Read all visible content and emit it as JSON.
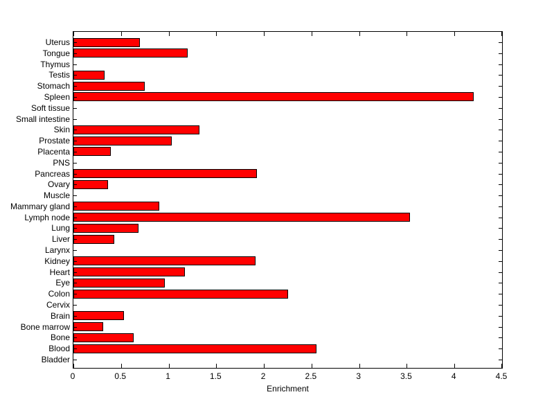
{
  "chart_data": {
    "type": "bar",
    "orientation": "horizontal",
    "title": "",
    "xlabel": "Enrichment",
    "ylabel": "",
    "xlim": [
      0,
      4.5
    ],
    "xticks": [
      0,
      0.5,
      1,
      1.5,
      2,
      2.5,
      3,
      3.5,
      4,
      4.5
    ],
    "xtick_labels": [
      "0",
      "0.5",
      "1",
      "1.5",
      "2",
      "2.5",
      "3",
      "3.5",
      "4",
      "4.5"
    ],
    "categories": [
      "Uterus",
      "Tongue",
      "Thymus",
      "Testis",
      "Stomach",
      "Spleen",
      "Soft tissue",
      "Small intestine",
      "Skin",
      "Prostate",
      "Placenta",
      "PNS",
      "Pancreas",
      "Ovary",
      "Muscle",
      "Mammary gland",
      "Lymph node",
      "Lung",
      "Liver",
      "Larynx",
      "Kidney",
      "Heart",
      "Eye",
      "Colon",
      "Cervix",
      "Brain",
      "Bone marrow",
      "Bone",
      "Blood",
      "Bladder"
    ],
    "values": [
      0.7,
      1.2,
      0,
      0.33,
      0.75,
      4.2,
      0,
      0,
      1.32,
      1.03,
      0.39,
      0,
      1.93,
      0.36,
      0,
      0.9,
      3.53,
      0.68,
      0.43,
      0,
      1.91,
      1.17,
      0.96,
      2.25,
      0,
      0.53,
      0.31,
      0.63,
      2.55,
      0
    ],
    "bar_color": "#ff0000",
    "bar_edge_color": "#000000",
    "axis_color": "#000000",
    "background_color": "#ffffff",
    "grid": false,
    "legend": null
  }
}
